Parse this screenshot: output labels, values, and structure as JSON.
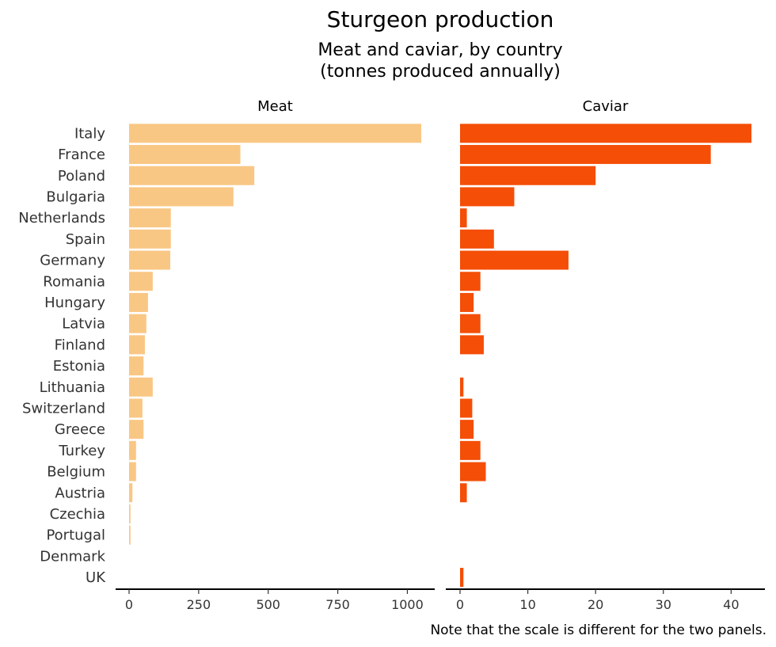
{
  "chart_data": {
    "type": "bar",
    "orientation": "horizontal",
    "title": "Sturgeon production",
    "subtitle_lines": [
      "Meat and caviar, by country",
      "(tonnes produced annually)"
    ],
    "caption": "Note that the scale is different for the two panels.",
    "categories": [
      "Italy",
      "France",
      "Poland",
      "Bulgaria",
      "Netherlands",
      "Spain",
      "Germany",
      "Romania",
      "Hungary",
      "Latvia",
      "Finland",
      "Estonia",
      "Lithuania",
      "Switzerland",
      "Greece",
      "Turkey",
      "Belgium",
      "Austria",
      "Czechia",
      "Portugal",
      "Denmark",
      "UK"
    ],
    "grid": false,
    "panels": [
      {
        "name": "Meat",
        "color": "#f9c784",
        "xlim": [
          0,
          1100
        ],
        "ticks": [
          0,
          250,
          500,
          750,
          1000
        ],
        "values": [
          1050,
          400,
          450,
          375,
          150,
          150,
          148,
          85,
          68,
          62,
          57,
          52,
          85,
          48,
          52,
          25,
          25,
          12,
          5,
          5,
          0,
          0
        ]
      },
      {
        "name": "Caviar",
        "color": "#f44e07",
        "xlim": [
          0,
          43.5
        ],
        "ticks": [
          0,
          10,
          20,
          30,
          40
        ],
        "values": [
          43,
          37,
          20,
          8,
          1,
          5,
          16,
          3,
          2,
          3,
          3.5,
          0,
          0.5,
          1.8,
          2,
          3,
          3.8,
          1,
          0,
          0,
          0,
          0.5
        ]
      }
    ]
  }
}
